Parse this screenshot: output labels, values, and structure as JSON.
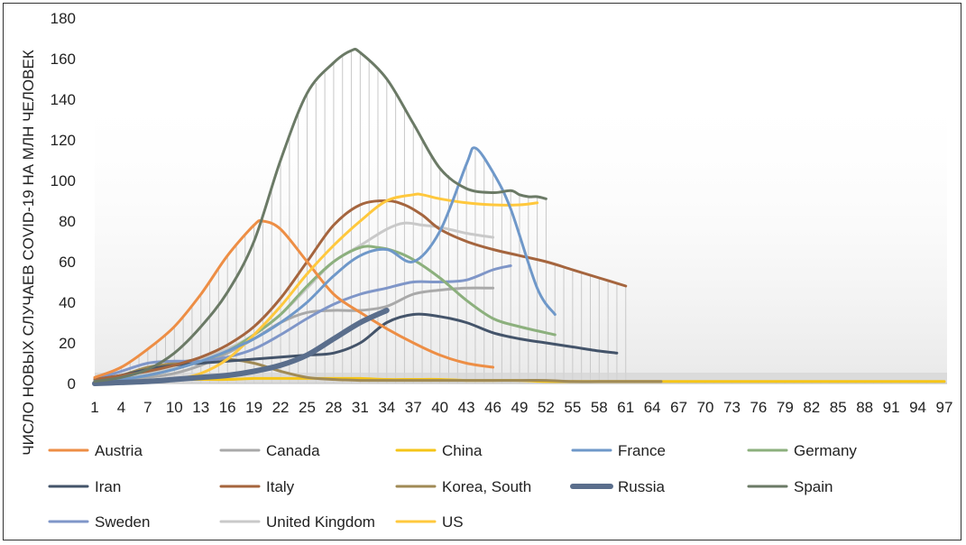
{
  "chart_data": {
    "type": "line",
    "title": "",
    "xlabel": "",
    "ylabel": "ЧИСЛО НОВЫХ СЛУЧАЕВ COVID-19 НА МЛН ЧЕЛОВЕК",
    "xlim": [
      1,
      97
    ],
    "ylim": [
      0,
      180
    ],
    "yticks": [
      0,
      20,
      40,
      60,
      80,
      100,
      120,
      140,
      160,
      180
    ],
    "xticks": [
      1,
      4,
      7,
      10,
      13,
      16,
      19,
      22,
      25,
      28,
      31,
      34,
      37,
      40,
      43,
      46,
      49,
      52,
      55,
      58,
      61,
      64,
      67,
      70,
      73,
      76,
      79,
      82,
      85,
      88,
      91,
      94,
      97
    ],
    "legend_position": "bottom",
    "grid": "vertical drop lines",
    "series": [
      {
        "name": "Austria",
        "color": "#ED8E45",
        "width": 3,
        "x": [
          1,
          4,
          7,
          10,
          13,
          16,
          19,
          20,
          22,
          25,
          28,
          31,
          34,
          37,
          40,
          43,
          46
        ],
        "y": [
          3,
          8,
          17,
          28,
          44,
          63,
          78,
          80,
          76,
          60,
          44,
          35,
          27,
          20,
          14,
          10,
          8
        ]
      },
      {
        "name": "Canada",
        "color": "#A9A9A9",
        "width": 3,
        "x": [
          1,
          4,
          7,
          10,
          13,
          16,
          19,
          22,
          25,
          28,
          31,
          34,
          37,
          40,
          43,
          46
        ],
        "y": [
          2,
          2,
          3,
          5,
          9,
          15,
          22,
          30,
          35,
          36,
          36,
          38,
          44,
          46,
          47,
          47
        ]
      },
      {
        "name": "China",
        "color": "#F5C518",
        "width": 3,
        "x": [
          1,
          4,
          7,
          10,
          13,
          16,
          19,
          22,
          25,
          28,
          31,
          34,
          37,
          40,
          43,
          46,
          49,
          52,
          55,
          58,
          61,
          64,
          67,
          70,
          73,
          76,
          79,
          82,
          85,
          88,
          91,
          94,
          97
        ],
        "y": [
          0.5,
          1,
          1.5,
          2,
          2,
          2,
          2.5,
          2.5,
          2.5,
          2.5,
          2.5,
          2,
          2,
          2,
          1.5,
          1.5,
          1.5,
          1,
          1,
          1,
          1,
          1,
          1,
          1,
          1,
          1,
          1,
          1,
          1,
          1,
          1,
          1,
          1
        ]
      },
      {
        "name": "France",
        "color": "#6F98C9",
        "width": 3,
        "x": [
          1,
          4,
          7,
          10,
          13,
          16,
          19,
          22,
          25,
          28,
          31,
          34,
          37,
          40,
          43,
          44,
          46,
          48,
          51,
          53
        ],
        "y": [
          1,
          2,
          4,
          7,
          11,
          16,
          22,
          30,
          40,
          53,
          63,
          66,
          60,
          75,
          108,
          116,
          104,
          86,
          47,
          34
        ]
      },
      {
        "name": "Germany",
        "color": "#8CB07D",
        "width": 3,
        "x": [
          1,
          4,
          7,
          10,
          13,
          16,
          19,
          22,
          25,
          28,
          31,
          33,
          35,
          37,
          40,
          43,
          46,
          49,
          53
        ],
        "y": [
          1,
          2,
          4,
          7,
          11,
          16,
          24,
          34,
          48,
          60,
          67,
          67,
          65,
          61,
          52,
          41,
          32,
          28,
          24
        ]
      },
      {
        "name": "Iran",
        "color": "#44546A",
        "width": 3,
        "x": [
          1,
          4,
          7,
          10,
          13,
          16,
          19,
          22,
          25,
          28,
          31,
          34,
          37,
          40,
          43,
          46,
          49,
          52,
          55,
          58,
          60
        ],
        "y": [
          2,
          4,
          7,
          9,
          10,
          11,
          12,
          13,
          14,
          15,
          20,
          30,
          34,
          33,
          30,
          25,
          22,
          20,
          18,
          16,
          15
        ]
      },
      {
        "name": "Italy",
        "color": "#A5653E",
        "width": 3,
        "x": [
          1,
          4,
          7,
          10,
          13,
          16,
          19,
          22,
          25,
          28,
          31,
          34,
          36,
          38,
          40,
          43,
          46,
          49,
          52,
          55,
          58,
          61
        ],
        "y": [
          2,
          4,
          6,
          9,
          13,
          19,
          28,
          42,
          60,
          78,
          88,
          90,
          88,
          83,
          76,
          70,
          66,
          63,
          60,
          56,
          52,
          48
        ]
      },
      {
        "name": "Korea, South",
        "color": "#A08A55",
        "width": 3,
        "x": [
          1,
          4,
          7,
          10,
          13,
          16,
          19,
          22,
          25,
          28,
          31,
          34,
          37,
          40,
          43,
          46,
          49,
          52,
          55,
          58,
          61,
          64,
          65
        ],
        "y": [
          1,
          4,
          8,
          10,
          12,
          12,
          10,
          6,
          3,
          2,
          1.5,
          1.5,
          1.5,
          1.5,
          1.5,
          1.5,
          1.5,
          1.5,
          1,
          1,
          1,
          1,
          1
        ]
      },
      {
        "name": "Russia",
        "color": "#5A6E8C",
        "width": 6,
        "x": [
          1,
          4,
          7,
          10,
          13,
          16,
          19,
          22,
          25,
          28,
          31,
          34
        ],
        "y": [
          0,
          0.5,
          1,
          2,
          3,
          4,
          6,
          9,
          14,
          22,
          30,
          36
        ]
      },
      {
        "name": "Spain",
        "color": "#6B7A66",
        "width": 3,
        "x": [
          1,
          4,
          7,
          10,
          13,
          16,
          19,
          22,
          25,
          28,
          30,
          31,
          34,
          37,
          40,
          43,
          46,
          48,
          49,
          50,
          51,
          52
        ],
        "y": [
          1,
          3,
          7,
          15,
          28,
          45,
          70,
          110,
          143,
          158,
          164,
          163,
          150,
          128,
          106,
          96,
          94,
          95,
          93,
          92,
          92,
          91
        ]
      },
      {
        "name": "Sweden",
        "color": "#7F96C8",
        "width": 3,
        "x": [
          1,
          4,
          7,
          10,
          13,
          16,
          19,
          22,
          25,
          28,
          31,
          34,
          37,
          40,
          43,
          46,
          48
        ],
        "y": [
          2,
          6,
          10,
          11,
          11,
          13,
          17,
          24,
          32,
          39,
          44,
          47,
          50,
          50,
          51,
          56,
          58
        ]
      },
      {
        "name": "United Kingdom",
        "color": "#C9C9C9",
        "width": 3,
        "x": [
          1,
          4,
          7,
          10,
          13,
          16,
          19,
          22,
          25,
          28,
          31,
          34,
          36,
          38,
          40,
          43,
          46
        ],
        "y": [
          1,
          3,
          5,
          8,
          12,
          17,
          24,
          34,
          47,
          60,
          68,
          76,
          79,
          78,
          77,
          74,
          72
        ]
      },
      {
        "name": "US",
        "color": "#FFC83D",
        "width": 3,
        "x": [
          1,
          4,
          7,
          10,
          13,
          16,
          19,
          22,
          25,
          28,
          31,
          34,
          37,
          38,
          40,
          43,
          46,
          49,
          51
        ],
        "y": [
          0,
          0.5,
          1,
          2,
          5,
          12,
          24,
          38,
          54,
          68,
          80,
          90,
          93,
          93,
          91,
          89,
          88,
          88,
          89
        ]
      }
    ]
  }
}
